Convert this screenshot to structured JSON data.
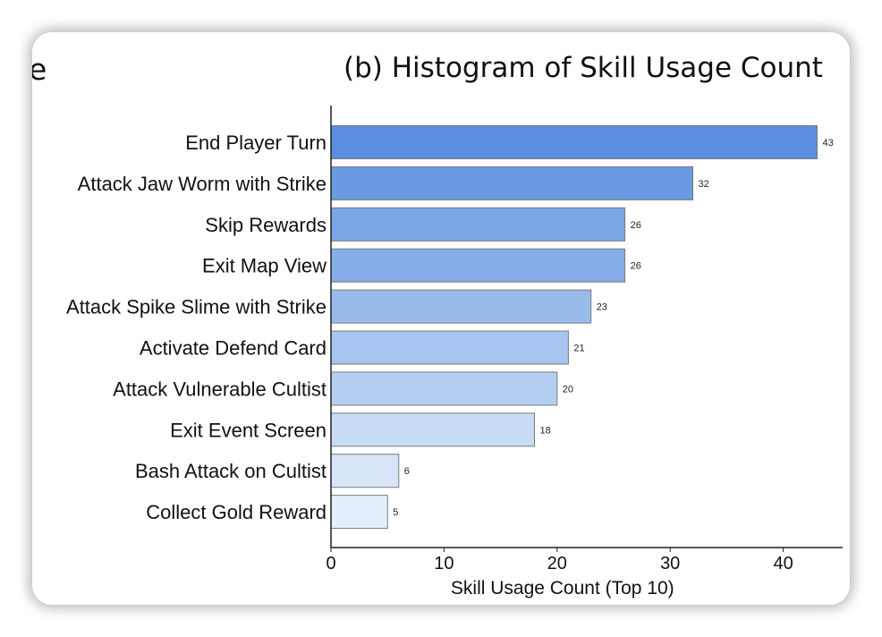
{
  "page": {
    "cut_text": "e"
  },
  "chart_data": {
    "type": "bar",
    "orientation": "horizontal",
    "title": "(b) Histogram of Skill Usage Count",
    "xlabel": "Skill Usage Count (Top 10)",
    "ylabel": "",
    "xlim": [
      0,
      45
    ],
    "xticks": [
      0,
      10,
      20,
      30,
      40
    ],
    "grid": false,
    "categories": [
      "End Player Turn",
      "Attack Jaw Worm with Strike",
      "Skip Rewards",
      "Exit Map View",
      "Attack Spike Slime with Strike",
      "Activate Defend Card",
      "Attack Vulnerable Cultist",
      "Exit Event Screen",
      "Bash Attack on Cultist",
      "Collect Gold Reward"
    ],
    "values": [
      43,
      32,
      26,
      26,
      23,
      21,
      20,
      18,
      6,
      5
    ],
    "colors": [
      "#5b8ee0",
      "#6a9ae3",
      "#7ba6e6",
      "#87aee9",
      "#99bbec",
      "#a8c5ef",
      "#b5cff2",
      "#c7dbf5",
      "#d8e5f8",
      "#e5eefb"
    ],
    "bar_edge_color": "#7a7a7a"
  }
}
